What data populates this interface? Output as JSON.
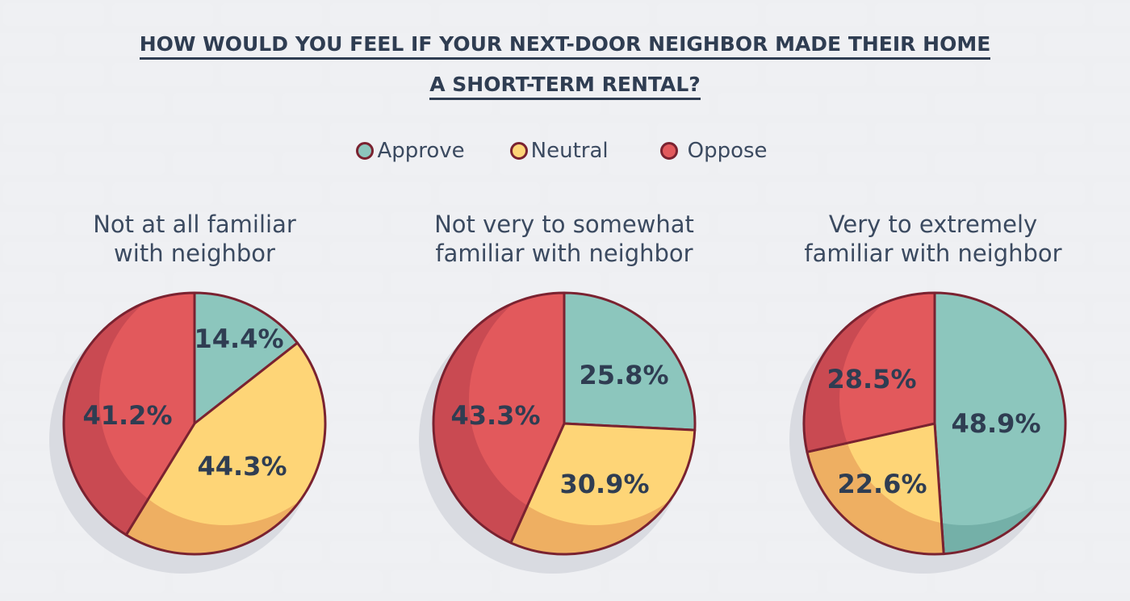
{
  "title_line1": "HOW WOULD YOU FEEL IF YOUR NEXT-DOOR NEIGHBOR MADE THEIR HOME",
  "title_line2": "A SHORT-TERM RENTAL?",
  "legend": [
    {
      "label": "Approve",
      "color": "#8cc6bd"
    },
    {
      "label": "Neutral",
      "color": "#fed577"
    },
    {
      "label": "Oppose",
      "color": "#e2595c"
    }
  ],
  "outline_color": "#7a2230",
  "chart_data": [
    {
      "type": "pie",
      "title": "Not at all familiar with neighbor",
      "categories": [
        "Approve",
        "Neutral",
        "Oppose"
      ],
      "values": [
        14.4,
        44.3,
        41.2
      ],
      "labels": [
        "14.4%",
        "44.3%",
        "41.2%"
      ]
    },
    {
      "type": "pie",
      "title": "Not very to somewhat familiar with neighbor",
      "categories": [
        "Approve",
        "Neutral",
        "Oppose"
      ],
      "values": [
        25.8,
        30.9,
        43.3
      ],
      "labels": [
        "25.8%",
        "30.9%",
        "43.3%"
      ]
    },
    {
      "type": "pie",
      "title": "Very to extremely familiar with neighbor",
      "categories": [
        "Approve",
        "Neutral",
        "Oppose"
      ],
      "values": [
        48.9,
        22.6,
        28.5
      ],
      "labels": [
        "48.9%",
        "22.6%",
        "28.5%"
      ]
    }
  ],
  "subtitles": [
    [
      "Not at all familiar",
      "with neighbor"
    ],
    [
      "Not very to somewhat",
      "familiar with neighbor"
    ],
    [
      "Very to extremely",
      "familiar with neighbor"
    ]
  ]
}
